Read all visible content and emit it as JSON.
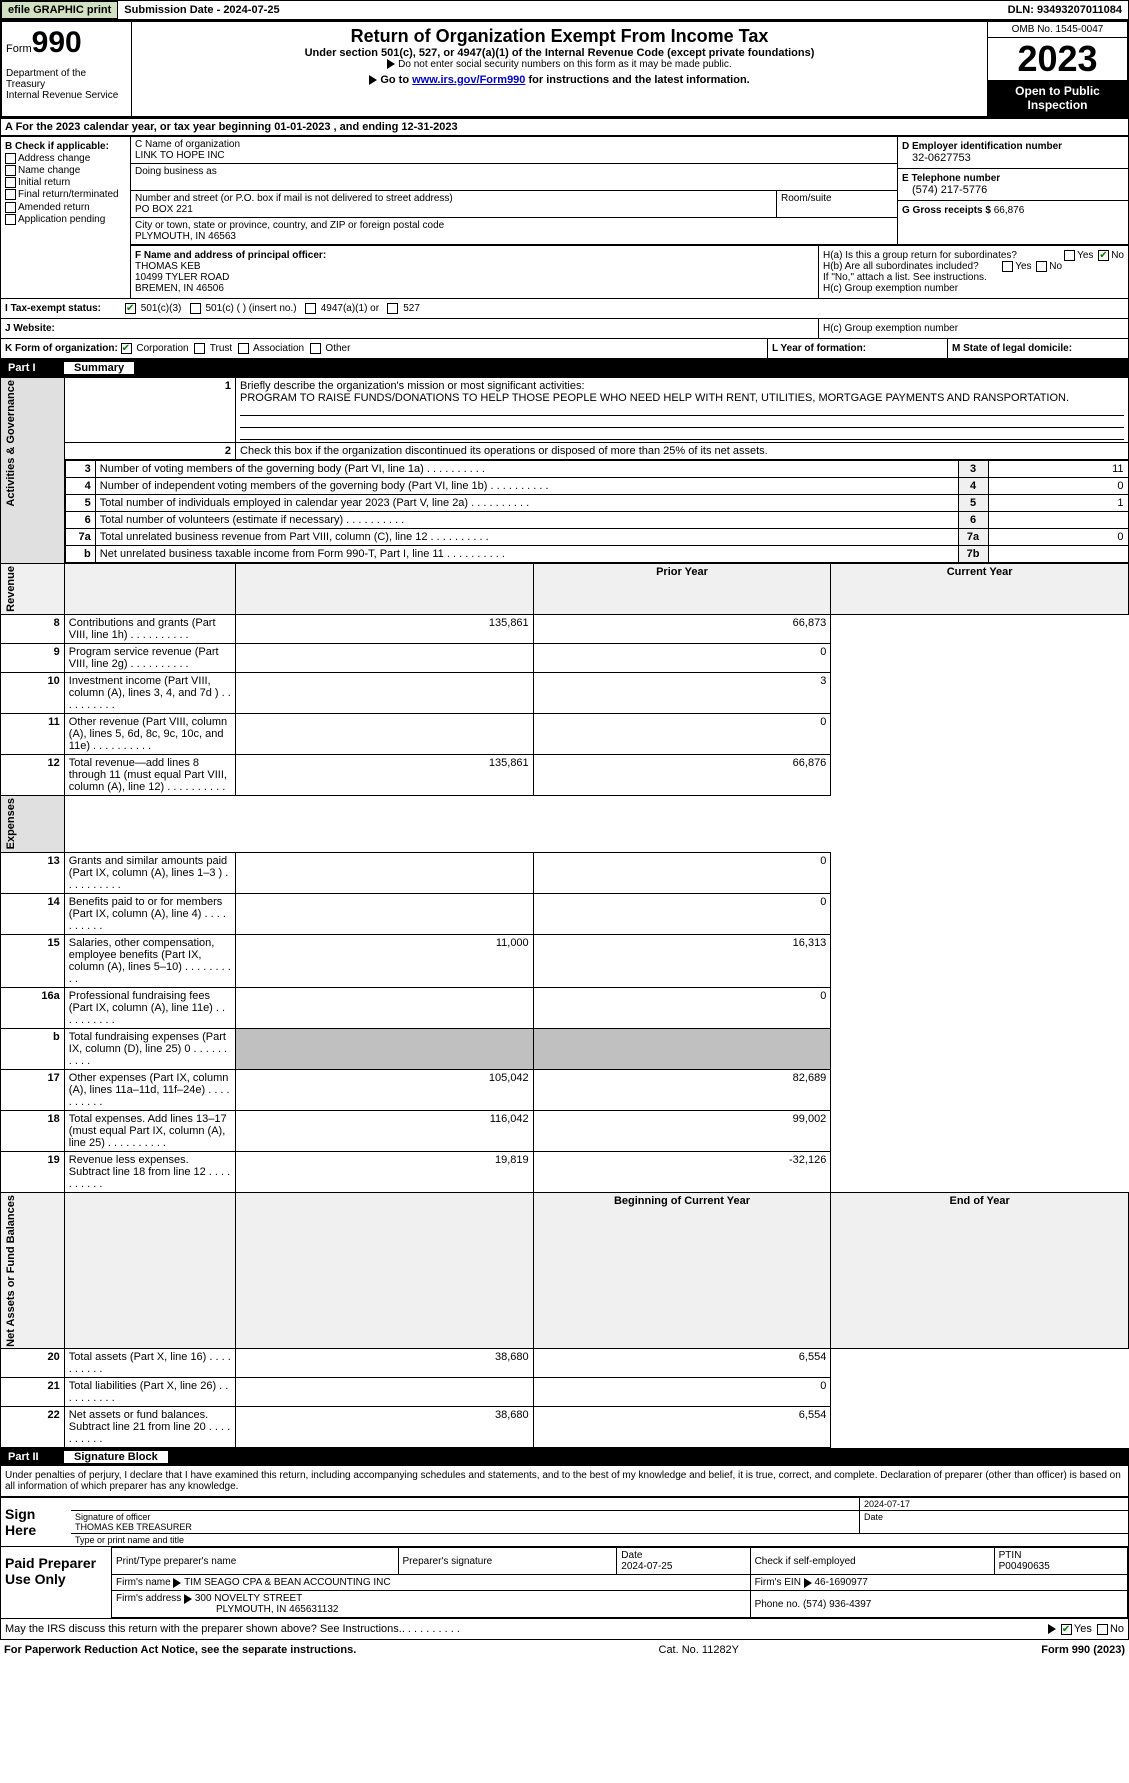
{
  "top": {
    "efile_btn": "efile GRAPHIC print",
    "submission_label": "Submission Date - 2024-07-25",
    "dln": "DLN: 93493207011084"
  },
  "header": {
    "form_label": "Form",
    "form_num": "990",
    "dept": "Department of the Treasury\nInternal Revenue Service",
    "title": "Return of Organization Exempt From Income Tax",
    "sub": "Under section 501(c), 527, or 4947(a)(1) of the Internal Revenue Code (except private foundations)",
    "sub2": "Do not enter social security numbers on this form as it may be made public.",
    "goto_pre": "Go to ",
    "goto_link": "www.irs.gov/Form990",
    "goto_post": " for instructions and the latest information.",
    "omb": "OMB No. 1545-0047",
    "year": "2023",
    "open": "Open to Public Inspection"
  },
  "secA": {
    "text": "A  For the 2023 calendar year, or tax year beginning 01-01-2023    , and ending 12-31-2023"
  },
  "boxB": {
    "hdr": "B Check if applicable:",
    "opts": [
      "Address change",
      "Name change",
      "Initial return",
      "Final return/terminated",
      "Amended return",
      "Application pending"
    ]
  },
  "boxC": {
    "name_lbl": "C Name of organization",
    "name": "LINK TO HOPE INC",
    "dba_lbl": "Doing business as",
    "street_lbl": "Number and street (or P.O. box if mail is not delivered to street address)",
    "street": "PO BOX 221",
    "room_lbl": "Room/suite",
    "city_lbl": "City or town, state or province, country, and ZIP or foreign postal code",
    "city": "PLYMOUTH, IN  46563"
  },
  "boxD": {
    "lbl": "D Employer identification number",
    "val": "32-0627753",
    "e_lbl": "E Telephone number",
    "e_val": "(574) 217-5776",
    "g_lbl": "G Gross receipts $",
    "g_val": "66,876"
  },
  "boxF": {
    "lbl": "F  Name and address of principal officer:",
    "name": "THOMAS KEB",
    "addr1": "10499 TYLER ROAD",
    "addr2": "BREMEN, IN  46506"
  },
  "boxH": {
    "ha": "H(a)  Is this a group return for subordinates?",
    "hb": "H(b)  Are all subordinates included?",
    "hb_note": "If \"No,\" attach a list. See instructions.",
    "hc": "H(c)  Group exemption number",
    "yes": "Yes",
    "no": "No"
  },
  "rowI": {
    "lbl": "Tax-exempt status:",
    "opts": [
      "501(c)(3)",
      "501(c) (  ) (insert no.)",
      "4947(a)(1) or",
      "527"
    ]
  },
  "rowJ": {
    "lbl": "Website:",
    "val": ""
  },
  "rowK": {
    "lbl": "K Form of organization:",
    "opts": [
      "Corporation",
      "Trust",
      "Association",
      "Other"
    ],
    "l_lbl": "L Year of formation:",
    "m_lbl": "M State of legal domicile:"
  },
  "part1": {
    "pt": "Part I",
    "title": "Summary"
  },
  "summary": {
    "side_labels": [
      "Activities & Governance",
      "Revenue",
      "Expenses",
      "Net Assets or Fund Balances"
    ],
    "line1": "Briefly describe the organization's mission or most significant activities:",
    "mission": "PROGRAM TO RAISE FUNDS/DONATIONS TO HELP THOSE PEOPLE WHO NEED HELP WITH RENT, UTILITIES, MORTGAGE PAYMENTS AND RANSPORTATION.",
    "line2": "Check this box      if the organization discontinued its operations or disposed of more than 25% of its net assets.",
    "lines_gov": [
      {
        "n": "3",
        "t": "Number of voting members of the governing body (Part VI, line 1a)",
        "r": "3",
        "v": "11"
      },
      {
        "n": "4",
        "t": "Number of independent voting members of the governing body (Part VI, line 1b)",
        "r": "4",
        "v": "0"
      },
      {
        "n": "5",
        "t": "Total number of individuals employed in calendar year 2023 (Part V, line 2a)",
        "r": "5",
        "v": "1"
      },
      {
        "n": "6",
        "t": "Total number of volunteers (estimate if necessary)",
        "r": "6",
        "v": ""
      },
      {
        "n": "7a",
        "t": "Total unrelated business revenue from Part VIII, column (C), line 12",
        "r": "7a",
        "v": "0"
      },
      {
        "n": "b",
        "t": "Net unrelated business taxable income from Form 990-T, Part I, line 11",
        "r": "7b",
        "v": ""
      }
    ],
    "prior_hdr": "Prior Year",
    "curr_hdr": "Current Year",
    "rev": [
      {
        "n": "8",
        "t": "Contributions and grants (Part VIII, line 1h)",
        "p": "135,861",
        "c": "66,873"
      },
      {
        "n": "9",
        "t": "Program service revenue (Part VIII, line 2g)",
        "p": "",
        "c": "0"
      },
      {
        "n": "10",
        "t": "Investment income (Part VIII, column (A), lines 3, 4, and 7d )",
        "p": "",
        "c": "3"
      },
      {
        "n": "11",
        "t": "Other revenue (Part VIII, column (A), lines 5, 6d, 8c, 9c, 10c, and 11e)",
        "p": "",
        "c": "0"
      },
      {
        "n": "12",
        "t": "Total revenue—add lines 8 through 11 (must equal Part VIII, column (A), line 12)",
        "p": "135,861",
        "c": "66,876"
      }
    ],
    "exp": [
      {
        "n": "13",
        "t": "Grants and similar amounts paid (Part IX, column (A), lines 1–3 )",
        "p": "",
        "c": "0"
      },
      {
        "n": "14",
        "t": "Benefits paid to or for members (Part IX, column (A), line 4)",
        "p": "",
        "c": "0"
      },
      {
        "n": "15",
        "t": "Salaries, other compensation, employee benefits (Part IX, column (A), lines 5–10)",
        "p": "11,000",
        "c": "16,313"
      },
      {
        "n": "16a",
        "t": "Professional fundraising fees (Part IX, column (A), line 11e)",
        "p": "",
        "c": "0"
      },
      {
        "n": "b",
        "t": "Total fundraising expenses (Part IX, column (D), line 25) 0",
        "p": "grey",
        "c": "grey"
      },
      {
        "n": "17",
        "t": "Other expenses (Part IX, column (A), lines 11a–11d, 11f–24e)",
        "p": "105,042",
        "c": "82,689"
      },
      {
        "n": "18",
        "t": "Total expenses. Add lines 13–17 (must equal Part IX, column (A), line 25)",
        "p": "116,042",
        "c": "99,002"
      },
      {
        "n": "19",
        "t": "Revenue less expenses. Subtract line 18 from line 12",
        "p": "19,819",
        "c": "-32,126"
      }
    ],
    "begin_hdr": "Beginning of Current Year",
    "end_hdr": "End of Year",
    "net": [
      {
        "n": "20",
        "t": "Total assets (Part X, line 16)",
        "p": "38,680",
        "c": "6,554"
      },
      {
        "n": "21",
        "t": "Total liabilities (Part X, line 26)",
        "p": "",
        "c": "0"
      },
      {
        "n": "22",
        "t": "Net assets or fund balances. Subtract line 21 from line 20",
        "p": "38,680",
        "c": "6,554"
      }
    ]
  },
  "part2": {
    "pt": "Part II",
    "title": "Signature Block"
  },
  "sig": {
    "text": "Under penalties of perjury, I declare that I have examined this return, including accompanying schedules and statements, and to the best of my knowledge and belief, it is true, correct, and complete. Declaration of preparer (other than officer) is based on all information of which preparer has any knowledge.",
    "sign_here": "Sign Here",
    "sig_date": "2024-07-17",
    "sig_lbl": "Signature of officer",
    "sig_name": "THOMAS KEB  TREASURER",
    "type_lbl": "Type or print name and title",
    "date_lbl": "Date"
  },
  "paid": {
    "lbl": "Paid Preparer Use Only",
    "print_lbl": "Print/Type preparer's name",
    "sig_lbl": "Preparer's signature",
    "date_lbl": "Date",
    "date": "2024-07-25",
    "check_lbl": "Check      if self-employed",
    "ptin_lbl": "PTIN",
    "ptin": "P00490635",
    "firm_lbl": "Firm's name",
    "firm": "TIM SEAGO CPA & BEAN ACCOUNTING INC",
    "ein_lbl": "Firm's EIN",
    "ein": "46-1690977",
    "addr_lbl": "Firm's address",
    "addr": "300 NOVELTY STREET",
    "addr2": "PLYMOUTH, IN  465631132",
    "phone_lbl": "Phone no.",
    "phone": "(574) 936-4397"
  },
  "discuss": {
    "text": "May the IRS discuss this return with the preparer shown above? See Instructions.",
    "yes": "Yes",
    "no": "No"
  },
  "footer": {
    "left": "For Paperwork Reduction Act Notice, see the separate instructions.",
    "mid": "Cat. No. 11282Y",
    "right_pre": "Form ",
    "right_num": "990",
    "right_post": " (2023)"
  }
}
